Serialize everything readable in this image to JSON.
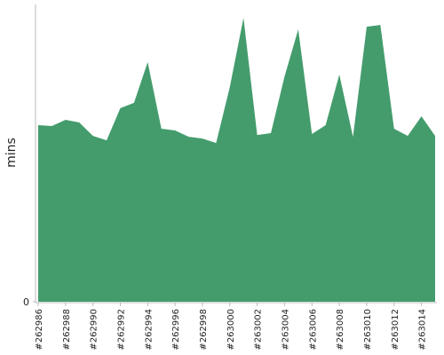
{
  "chart_data": {
    "type": "area",
    "y_label": "mins",
    "categories": [
      "#262986",
      null,
      "#262988",
      null,
      "#262990",
      null,
      "#262992",
      null,
      "#262994",
      null,
      "#262996",
      null,
      "#262998",
      null,
      "#263000",
      null,
      "#263002",
      null,
      "#263004",
      null,
      "#263006",
      null,
      "#263008",
      null,
      "#263010",
      null,
      "#263012",
      null,
      "#263014",
      null
    ],
    "values": [
      59.4,
      59.1,
      61.2,
      60.3,
      55.8,
      54.3,
      65.1,
      66.9,
      80.6,
      58.2,
      57.6,
      55.5,
      54.9,
      53.4,
      72.2,
      95.5,
      56.1,
      56.7,
      75.8,
      91.6,
      56.4,
      59.4,
      76.4,
      55.5,
      92.5,
      93.1,
      58.2,
      55.8,
      62.4,
      55.8
    ],
    "color": "#449c6c",
    "ylim": [
      0,
      100
    ],
    "yticks": [
      0
    ]
  }
}
